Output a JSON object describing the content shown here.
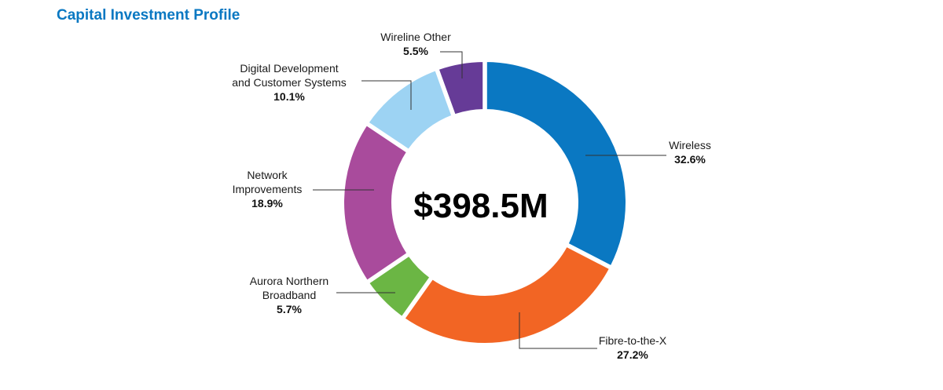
{
  "page": {
    "title": "Capital Investment Profile"
  },
  "chart_data": {
    "type": "pie",
    "variant": "donut",
    "title": "Capital Investment Profile",
    "center_label": "$398.5M",
    "slices": [
      {
        "name": "Wireless",
        "label_lines": [
          "Wireless"
        ],
        "value": 32.6,
        "value_label": "32.6%",
        "color": "#0a78c2"
      },
      {
        "name": "Fibre-to-the-X",
        "label_lines": [
          "Fibre-to-the-X"
        ],
        "value": 27.2,
        "value_label": "27.2%",
        "color": "#f26524"
      },
      {
        "name": "Aurora Northern Broadband",
        "label_lines": [
          "Aurora Northern",
          "Broadband"
        ],
        "value": 5.7,
        "value_label": "5.7%",
        "color": "#6bb644"
      },
      {
        "name": "Network Improvements",
        "label_lines": [
          "Network",
          "Improvements"
        ],
        "value": 18.9,
        "value_label": "18.9%",
        "color": "#a94b9c"
      },
      {
        "name": "Digital Development and Customer Systems",
        "label_lines": [
          "Digital Development",
          "and Customer Systems"
        ],
        "value": 10.1,
        "value_label": "10.1%",
        "color": "#9dd3f3"
      },
      {
        "name": "Wireline Other",
        "label_lines": [
          "Wireline Other"
        ],
        "value": 5.5,
        "value_label": "5.5%",
        "color": "#663b97"
      }
    ]
  }
}
